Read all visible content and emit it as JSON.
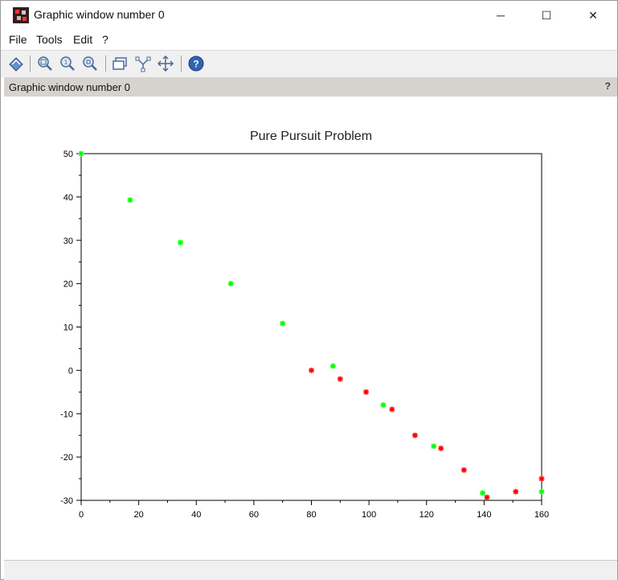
{
  "window": {
    "title": "Graphic window number 0",
    "minimize_glyph": "─",
    "maximize_glyph": "☐",
    "close_glyph": "✕"
  },
  "menu": {
    "items": [
      "File",
      "Tools",
      "Edit",
      "?"
    ]
  },
  "toolbar": {
    "buttons": [
      "rotate-icon",
      "zoom-in-icon",
      "zoom-reset-icon",
      "zoom-out-icon",
      "datatip-icon",
      "edit-curve-icon",
      "pan-icon",
      "help-icon"
    ]
  },
  "infobar": {
    "text": "Graphic window number 0",
    "help": "?"
  },
  "colors": {
    "pursuer": "#ff0000",
    "target": "#00ff00",
    "axis": "#000000"
  },
  "chart_data": {
    "type": "scatter",
    "title": "Pure Pursuit Problem",
    "xlabel": "",
    "ylabel": "",
    "xlim": [
      0,
      160
    ],
    "ylim": [
      -30,
      50
    ],
    "xticks": [
      0,
      20,
      40,
      60,
      80,
      100,
      120,
      140,
      160
    ],
    "yticks": [
      -30,
      -20,
      -10,
      0,
      10,
      20,
      30,
      40,
      50
    ],
    "grid": false,
    "series": [
      {
        "color": "#00ff00",
        "marker": "*",
        "points": [
          [
            0,
            50
          ],
          [
            17,
            39.3
          ],
          [
            34.5,
            29.5
          ],
          [
            52,
            20
          ],
          [
            70,
            10.8
          ],
          [
            87.5,
            1
          ],
          [
            105,
            -8
          ],
          [
            122.5,
            -17.5
          ],
          [
            139.5,
            -28.3
          ],
          [
            160,
            -28
          ]
        ]
      },
      {
        "color": "#ff0000",
        "marker": "*",
        "points": [
          [
            80,
            0
          ],
          [
            90,
            -2
          ],
          [
            99,
            -5
          ],
          [
            108,
            -9
          ],
          [
            116,
            -15
          ],
          [
            125,
            -18
          ],
          [
            133,
            -23
          ],
          [
            141,
            -29.3
          ],
          [
            151,
            -28
          ],
          [
            160,
            -25
          ]
        ]
      }
    ]
  }
}
